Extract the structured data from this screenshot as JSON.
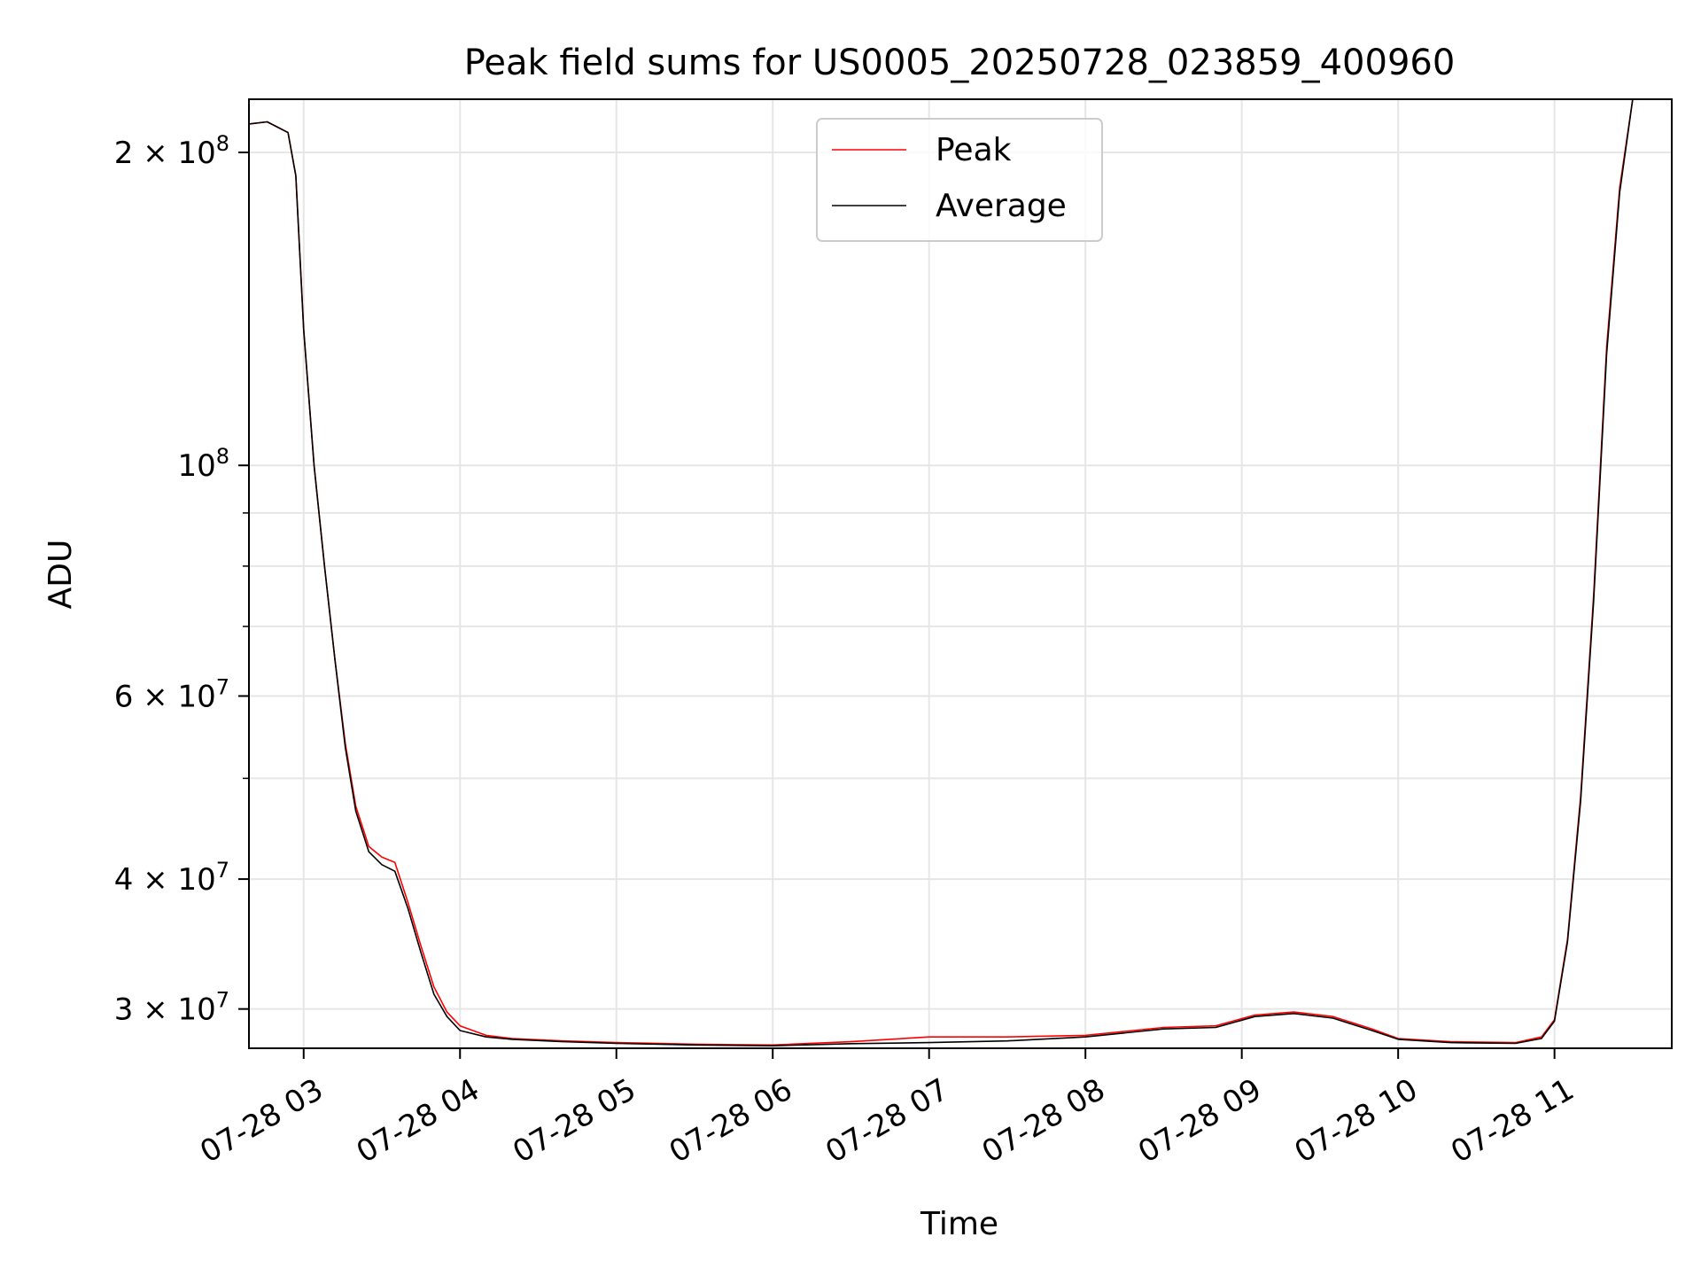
{
  "chart_data": {
    "type": "line",
    "title": "Peak field sums for US0005_20250728_023859_400960",
    "xlabel": "Time",
    "ylabel": "ADU",
    "yscale": "log",
    "xlim": [
      "2025-07-28 02:39",
      "2025-07-28 11:45"
    ],
    "ylim": [
      27500000,
      225000000
    ],
    "grid": true,
    "legend_position": "upper center",
    "x_ticks": [
      {
        "t": "2025-07-28 03:00",
        "label": "07-28 03"
      },
      {
        "t": "2025-07-28 04:00",
        "label": "07-28 04"
      },
      {
        "t": "2025-07-28 05:00",
        "label": "07-28 05"
      },
      {
        "t": "2025-07-28 06:00",
        "label": "07-28 06"
      },
      {
        "t": "2025-07-28 07:00",
        "label": "07-28 07"
      },
      {
        "t": "2025-07-28 08:00",
        "label": "07-28 08"
      },
      {
        "t": "2025-07-28 09:00",
        "label": "07-28 09"
      },
      {
        "t": "2025-07-28 10:00",
        "label": "07-28 10"
      },
      {
        "t": "2025-07-28 11:00",
        "label": "07-28 11"
      }
    ],
    "y_ticks": [
      {
        "value": 200000000,
        "coef": "2",
        "exp": "8"
      },
      {
        "value": 100000000,
        "coef": "",
        "exp": "8"
      },
      {
        "value": 60000000,
        "coef": "6",
        "exp": "7"
      },
      {
        "value": 40000000,
        "coef": "4",
        "exp": "7"
      },
      {
        "value": 30000000,
        "coef": "3",
        "exp": "7"
      }
    ],
    "y_minor_ticks": [
      90000000,
      80000000,
      70000000,
      50000000
    ],
    "series": [
      {
        "name": "Peak",
        "color": "#ff0000",
        "points": [
          [
            "2025-07-28 02:39",
            213000000
          ],
          [
            "2025-07-28 02:46",
            214000000
          ],
          [
            "2025-07-28 02:54",
            209000000
          ],
          [
            "2025-07-28 02:57",
            190000000
          ],
          [
            "2025-07-28 03:00",
            135000000
          ],
          [
            "2025-07-28 03:04",
            100000000
          ],
          [
            "2025-07-28 03:08",
            80000000
          ],
          [
            "2025-07-28 03:12",
            65000000
          ],
          [
            "2025-07-28 03:16",
            54000000
          ],
          [
            "2025-07-28 03:20",
            47000000
          ],
          [
            "2025-07-28 03:25",
            43000000
          ],
          [
            "2025-07-28 03:30",
            42000000
          ],
          [
            "2025-07-28 03:35",
            41500000
          ],
          [
            "2025-07-28 03:40",
            38000000
          ],
          [
            "2025-07-28 03:45",
            34500000
          ],
          [
            "2025-07-28 03:50",
            31500000
          ],
          [
            "2025-07-28 03:55",
            29800000
          ],
          [
            "2025-07-28 04:00",
            28900000
          ],
          [
            "2025-07-28 04:10",
            28300000
          ],
          [
            "2025-07-28 04:20",
            28100000
          ],
          [
            "2025-07-28 04:40",
            27950000
          ],
          [
            "2025-07-28 05:00",
            27850000
          ],
          [
            "2025-07-28 05:30",
            27750000
          ],
          [
            "2025-07-28 06:00",
            27700000
          ],
          [
            "2025-07-28 06:30",
            27900000
          ],
          [
            "2025-07-28 07:00",
            28200000
          ],
          [
            "2025-07-28 07:30",
            28200000
          ],
          [
            "2025-07-28 08:00",
            28300000
          ],
          [
            "2025-07-28 08:30",
            28800000
          ],
          [
            "2025-07-28 08:50",
            28900000
          ],
          [
            "2025-07-28 09:05",
            29600000
          ],
          [
            "2025-07-28 09:20",
            29800000
          ],
          [
            "2025-07-28 09:35",
            29500000
          ],
          [
            "2025-07-28 09:50",
            28700000
          ],
          [
            "2025-07-28 10:00",
            28100000
          ],
          [
            "2025-07-28 10:20",
            27900000
          ],
          [
            "2025-07-28 10:45",
            27850000
          ],
          [
            "2025-07-28 10:55",
            28200000
          ],
          [
            "2025-07-28 11:00",
            29300000
          ],
          [
            "2025-07-28 11:05",
            35000000
          ],
          [
            "2025-07-28 11:10",
            48000000
          ],
          [
            "2025-07-28 11:15",
            75000000
          ],
          [
            "2025-07-28 11:20",
            130000000
          ],
          [
            "2025-07-28 11:25",
            185000000
          ],
          [
            "2025-07-28 11:30",
            225000000
          ]
        ]
      },
      {
        "name": "Average",
        "color": "#000000",
        "points": [
          [
            "2025-07-28 02:39",
            213000000
          ],
          [
            "2025-07-28 02:46",
            214000000
          ],
          [
            "2025-07-28 02:54",
            209000000
          ],
          [
            "2025-07-28 02:57",
            190000000
          ],
          [
            "2025-07-28 03:00",
            135000000
          ],
          [
            "2025-07-28 03:04",
            100000000
          ],
          [
            "2025-07-28 03:08",
            80000000
          ],
          [
            "2025-07-28 03:12",
            65000000
          ],
          [
            "2025-07-28 03:16",
            53500000
          ],
          [
            "2025-07-28 03:20",
            46500000
          ],
          [
            "2025-07-28 03:25",
            42500000
          ],
          [
            "2025-07-28 03:30",
            41300000
          ],
          [
            "2025-07-28 03:35",
            40700000
          ],
          [
            "2025-07-28 03:40",
            37500000
          ],
          [
            "2025-07-28 03:45",
            34000000
          ],
          [
            "2025-07-28 03:50",
            31000000
          ],
          [
            "2025-07-28 03:55",
            29500000
          ],
          [
            "2025-07-28 04:00",
            28600000
          ],
          [
            "2025-07-28 04:10",
            28200000
          ],
          [
            "2025-07-28 04:20",
            28050000
          ],
          [
            "2025-07-28 04:40",
            27900000
          ],
          [
            "2025-07-28 05:00",
            27800000
          ],
          [
            "2025-07-28 05:30",
            27700000
          ],
          [
            "2025-07-28 06:00",
            27650000
          ],
          [
            "2025-07-28 06:30",
            27780000
          ],
          [
            "2025-07-28 07:00",
            27850000
          ],
          [
            "2025-07-28 07:30",
            27950000
          ],
          [
            "2025-07-28 08:00",
            28200000
          ],
          [
            "2025-07-28 08:30",
            28700000
          ],
          [
            "2025-07-28 08:50",
            28800000
          ],
          [
            "2025-07-28 09:05",
            29500000
          ],
          [
            "2025-07-28 09:20",
            29700000
          ],
          [
            "2025-07-28 09:35",
            29400000
          ],
          [
            "2025-07-28 09:50",
            28600000
          ],
          [
            "2025-07-28 10:00",
            28050000
          ],
          [
            "2025-07-28 10:20",
            27850000
          ],
          [
            "2025-07-28 10:45",
            27800000
          ],
          [
            "2025-07-28 10:55",
            28100000
          ],
          [
            "2025-07-28 11:00",
            29200000
          ],
          [
            "2025-07-28 11:05",
            34800000
          ],
          [
            "2025-07-28 11:10",
            47500000
          ],
          [
            "2025-07-28 11:15",
            74000000
          ],
          [
            "2025-07-28 11:20",
            128000000
          ],
          [
            "2025-07-28 11:25",
            183000000
          ],
          [
            "2025-07-28 11:30",
            225000000
          ]
        ]
      }
    ]
  }
}
